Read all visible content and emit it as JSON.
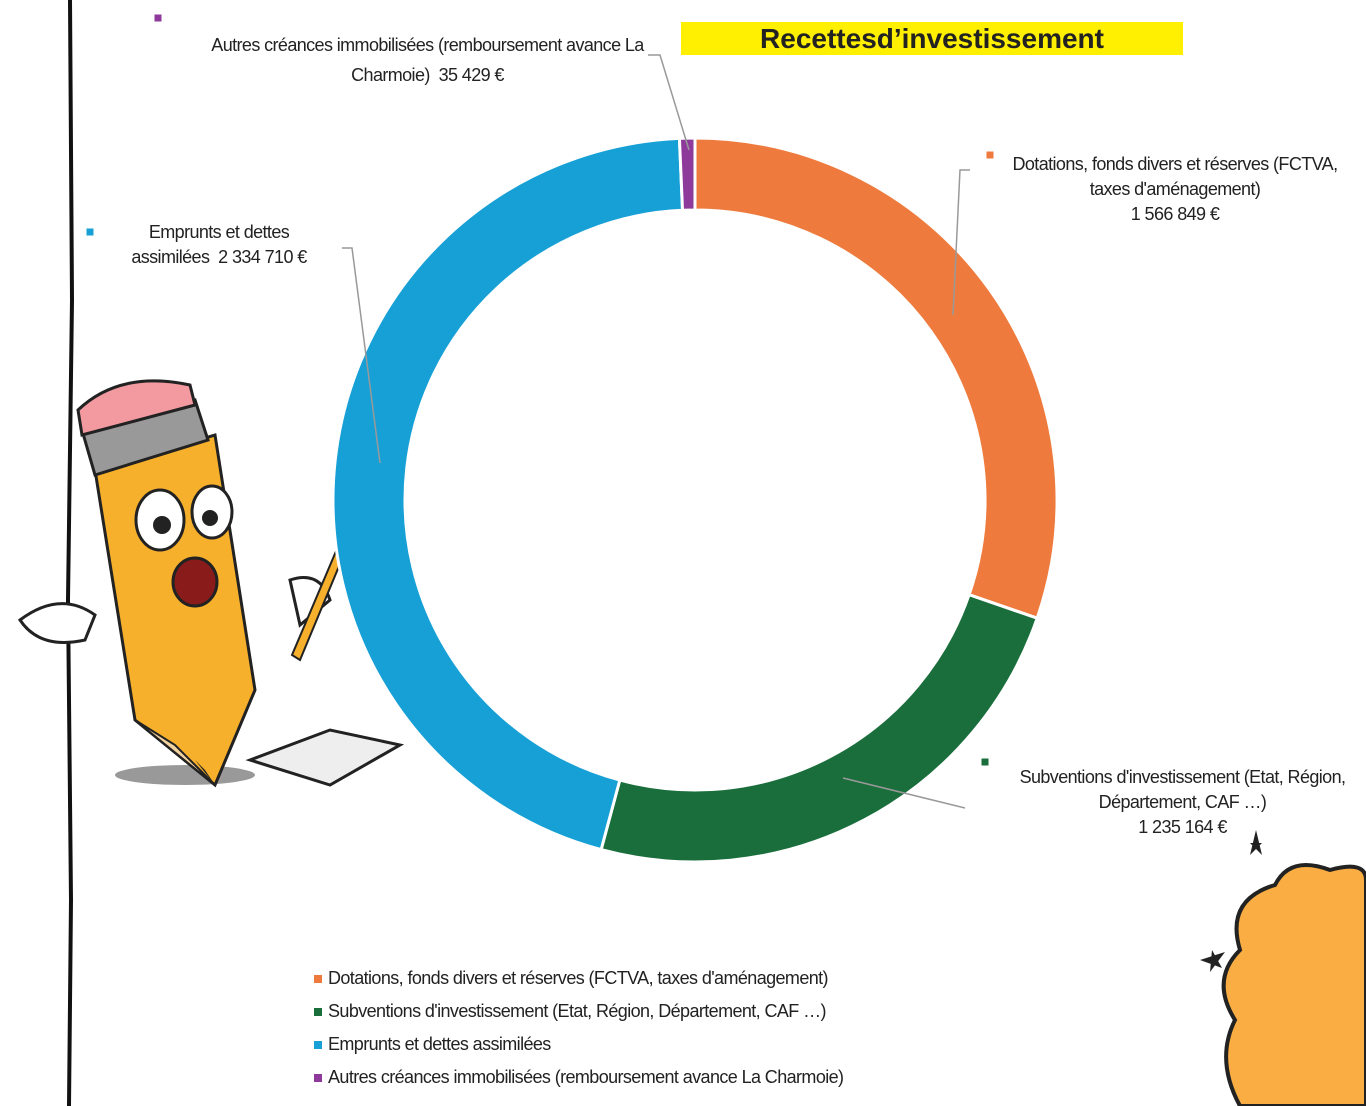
{
  "chart_data": {
    "type": "donut",
    "title": "Recettesd’investissement",
    "categories": [
      "Dotations, fonds divers et réserves (FCTVA, taxes d'aménagement)",
      "Subventions d'investissement (Etat, Région, Département, CAF …)",
      "Emprunts et dettes assimilées",
      "Autres créances immobilisées (remboursement avance La Charmoie)"
    ],
    "values": [
      1566849,
      1235164,
      2334710,
      35429
    ],
    "value_labels": [
      "1 566 849 €",
      "1 235 164 €",
      "2 334 710 €",
      "35 429 €"
    ],
    "colors": [
      "#ee7b3d",
      "#1a6e3c",
      "#17a0d6",
      "#8e3a9b"
    ],
    "legend": "bottom"
  }
}
